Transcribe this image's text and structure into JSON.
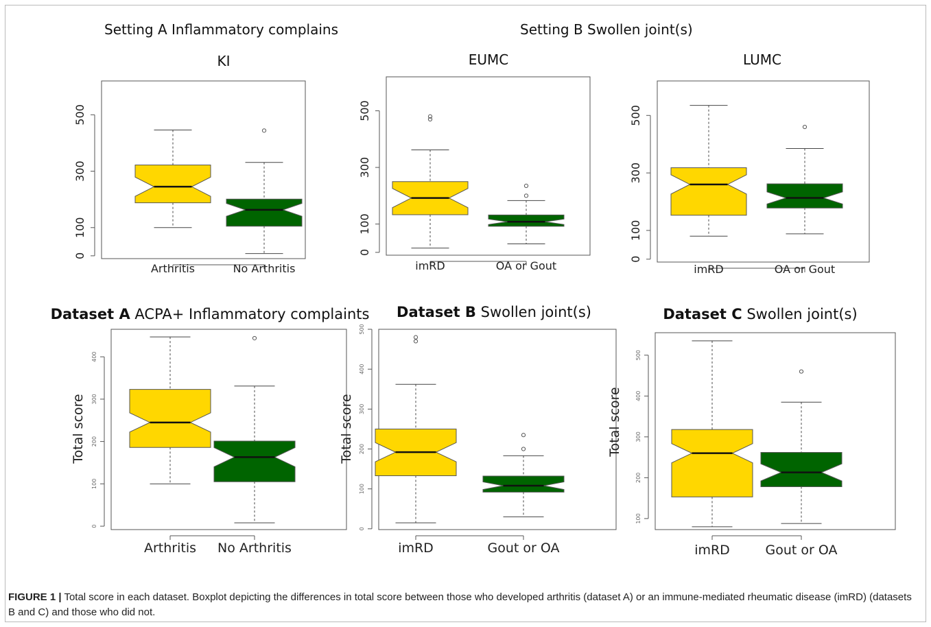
{
  "headers": {
    "setting_a": "Setting A Inflammatory complains",
    "setting_b": "Setting B Swollen joint(s)"
  },
  "chart_data": [
    {
      "type": "boxplot",
      "id": "ki",
      "title": "KI",
      "title_bold": "",
      "ylabel": "",
      "ylim": [
        -10,
        620
      ],
      "yticks": [
        0,
        100,
        300,
        500
      ],
      "tick_style": "large",
      "categories": [
        "Arthritis",
        "No Arthritis"
      ],
      "boxes": [
        {
          "min": 100,
          "q1": 188,
          "median": 245,
          "q3": 322,
          "max": 446,
          "outliers": [],
          "color": "#FFD700"
        },
        {
          "min": 8,
          "q1": 105,
          "median": 163,
          "q3": 201,
          "max": 331,
          "outliers": [
            444
          ],
          "color": "#006400"
        }
      ]
    },
    {
      "type": "boxplot",
      "id": "eumc",
      "title": "EUMC",
      "title_bold": "",
      "ylabel": "",
      "ylim": [
        -10,
        620
      ],
      "yticks": [
        0,
        100,
        300,
        500
      ],
      "tick_style": "large",
      "categories": [
        "imRD",
        "OA or Gout"
      ],
      "boxes": [
        {
          "min": 15,
          "q1": 133,
          "median": 192,
          "q3": 250,
          "max": 362,
          "outliers": [
            470,
            480
          ],
          "color": "#FFD700"
        },
        {
          "min": 30,
          "q1": 92,
          "median": 108,
          "q3": 132,
          "max": 183,
          "outliers": [
            200,
            235
          ],
          "color": "#006400"
        }
      ]
    },
    {
      "type": "boxplot",
      "id": "lumc",
      "title": "LUMC",
      "title_bold": "",
      "ylabel": "",
      "ylim": [
        -10,
        620
      ],
      "yticks": [
        0,
        100,
        300,
        500
      ],
      "tick_style": "large",
      "categories": [
        "imRD",
        "OA or Gout"
      ],
      "boxes": [
        {
          "min": 80,
          "q1": 153,
          "median": 260,
          "q3": 318,
          "max": 535,
          "outliers": [],
          "color": "#FFD700"
        },
        {
          "min": 88,
          "q1": 178,
          "median": 213,
          "q3": 262,
          "max": 385,
          "outliers": [
            460
          ],
          "color": "#006400"
        }
      ]
    },
    {
      "type": "boxplot",
      "id": "dataset-a",
      "title": "ACPA+ Inflammatory complaints",
      "title_bold": "Dataset A",
      "ylabel": "Total score",
      "ylim": [
        -8,
        465
      ],
      "yticks": [
        0,
        100,
        200,
        300,
        400
      ],
      "tick_style": "small",
      "categories": [
        "Arthritis",
        "No Arthritis"
      ],
      "boxes": [
        {
          "min": 100,
          "q1": 186,
          "median": 245,
          "q3": 323,
          "max": 447,
          "outliers": [],
          "color": "#FFD700"
        },
        {
          "min": 8,
          "q1": 105,
          "median": 163,
          "q3": 201,
          "max": 331,
          "outliers": [
            444
          ],
          "color": "#006400"
        }
      ]
    },
    {
      "type": "boxplot",
      "id": "dataset-b",
      "title": "Swollen joint(s)",
      "title_bold": "Dataset B",
      "ylabel": "Total score",
      "ylim": [
        -2,
        500
      ],
      "yticks": [
        0,
        100,
        200,
        300,
        400,
        500
      ],
      "tick_style": "small",
      "categories": [
        "imRD",
        "Gout or OA"
      ],
      "boxes": [
        {
          "min": 15,
          "q1": 133,
          "median": 192,
          "q3": 250,
          "max": 362,
          "outliers": [
            470,
            480
          ],
          "color": "#FFD700"
        },
        {
          "min": 30,
          "q1": 92,
          "median": 108,
          "q3": 132,
          "max": 183,
          "outliers": [
            200,
            235
          ],
          "color": "#006400"
        }
      ]
    },
    {
      "type": "boxplot",
      "id": "dataset-c",
      "title": "Swollen joint(s)",
      "title_bold": "Dataset C",
      "ylabel": "Total score",
      "ylim": [
        73,
        555
      ],
      "yticks": [
        100,
        200,
        300,
        400,
        500
      ],
      "tick_style": "small",
      "categories": [
        "imRD",
        "Gout or OA"
      ],
      "boxes": [
        {
          "min": 80,
          "q1": 153,
          "median": 260,
          "q3": 318,
          "max": 535,
          "outliers": [],
          "color": "#FFD700"
        },
        {
          "min": 88,
          "q1": 178,
          "median": 213,
          "q3": 262,
          "max": 385,
          "outliers": [
            460
          ],
          "color": "#006400"
        }
      ]
    }
  ],
  "caption": {
    "label": "FIGURE 1 |",
    "text": " Total score  in each dataset. Boxplot depicting the differences in total score between those who developed arthritis (dataset A) or an immune-mediated rheumatic disease (imRD) (datasets B and C) and those who did not."
  }
}
